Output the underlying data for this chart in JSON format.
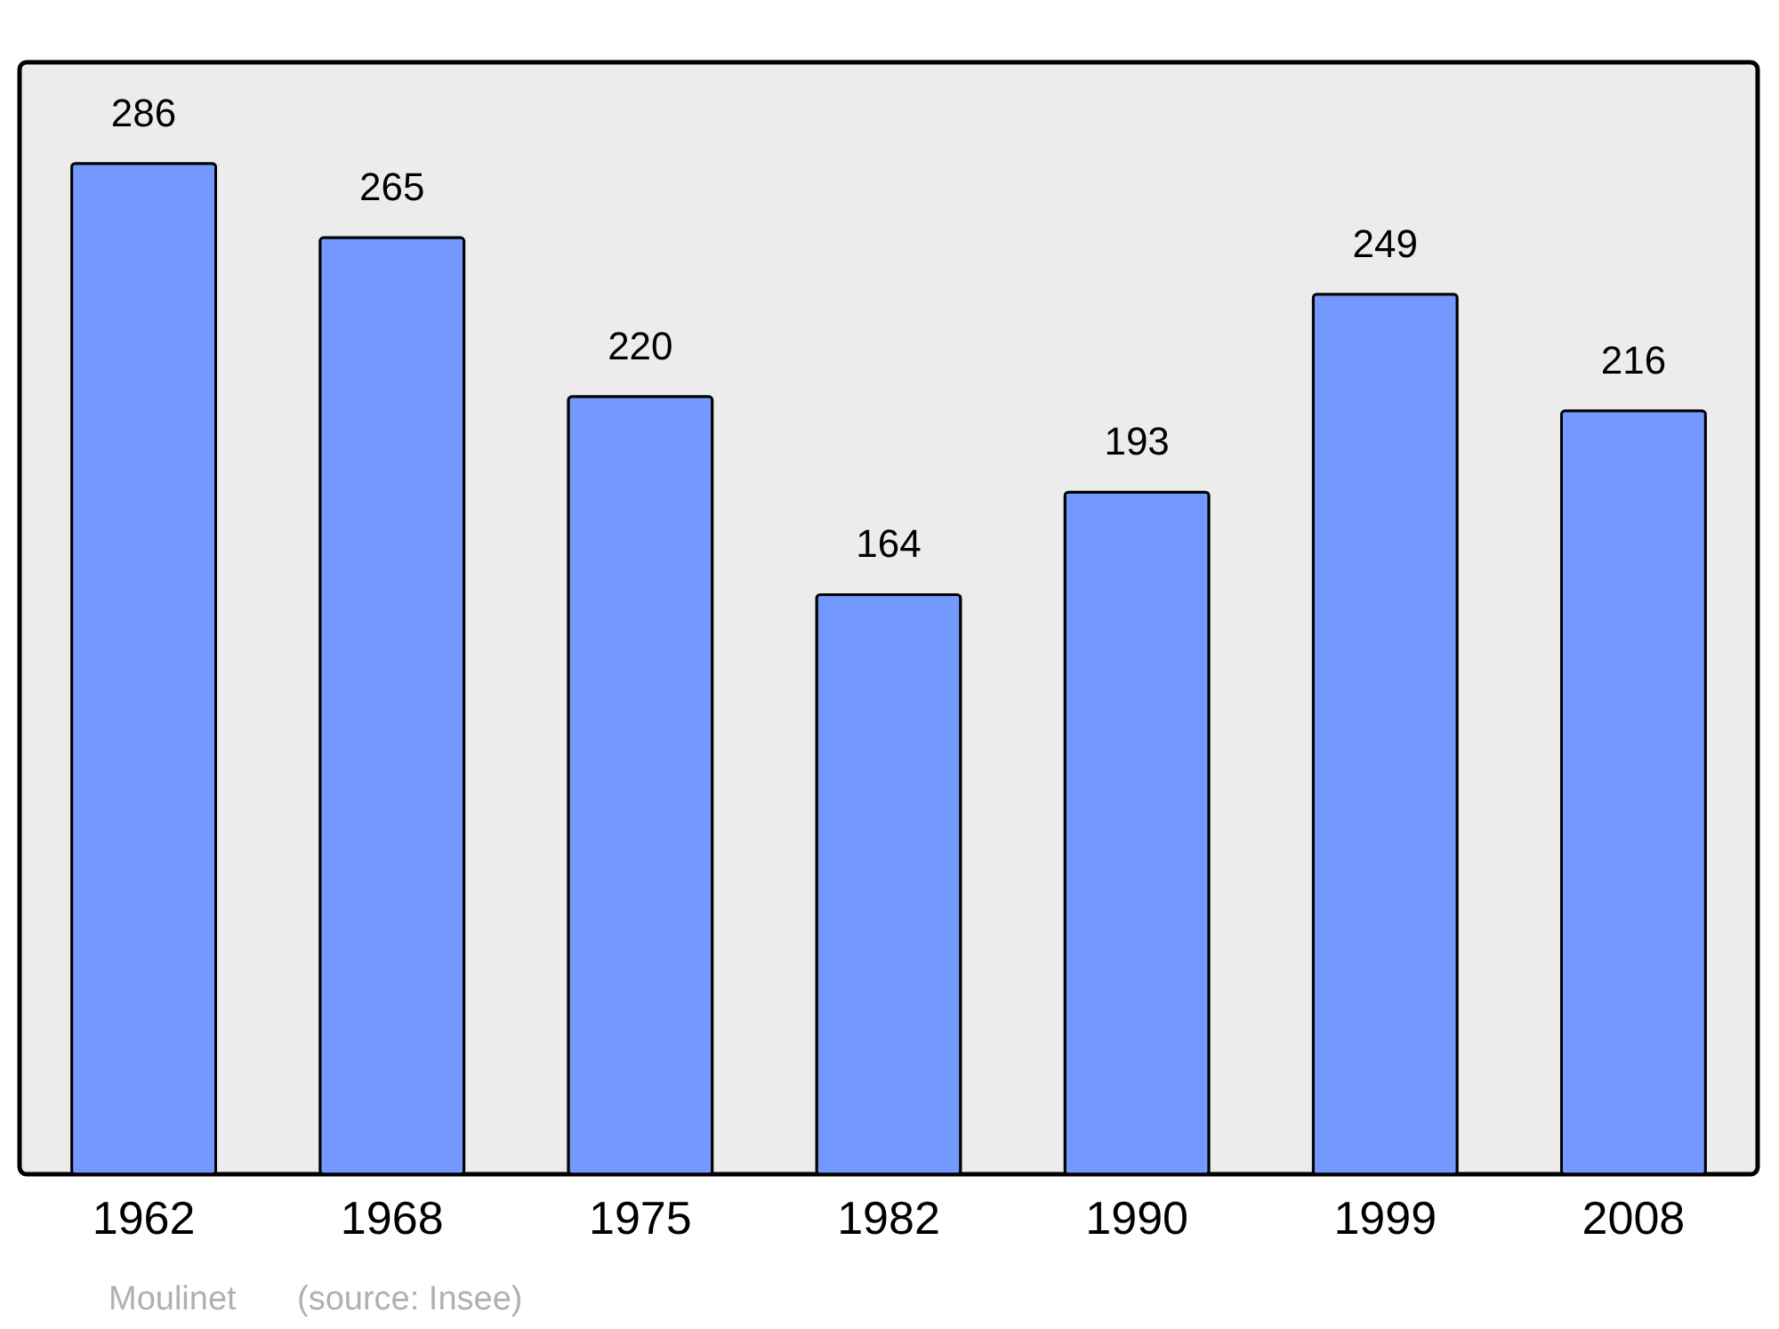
{
  "chart_data": {
    "type": "bar",
    "categories": [
      "1962",
      "1968",
      "1975",
      "1982",
      "1990",
      "1999",
      "2008"
    ],
    "values": [
      286,
      265,
      220,
      164,
      193,
      249,
      216
    ],
    "color": "#7399ff",
    "data_labels": true,
    "annotations": [
      "Moulinet",
      "(source: Insee)"
    ]
  }
}
